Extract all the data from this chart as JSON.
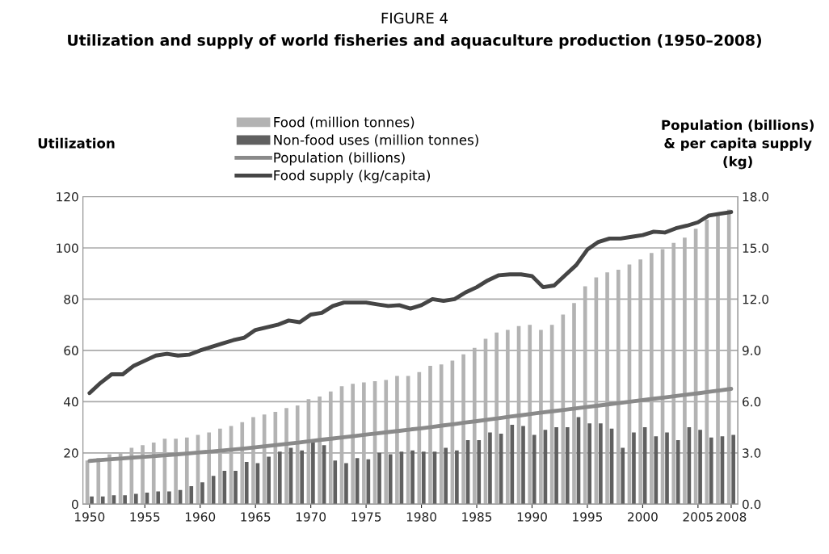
{
  "chart_data": {
    "type": "bar",
    "title": "FIGURE 4",
    "subtitle": "Utilization and supply of world fisheries and aquaculture production (1950–2008)",
    "ylabel": "Utilization",
    "y2label": "Population (billions)\n& per capita supply\n(kg)",
    "categories": [
      "1950",
      null,
      null,
      null,
      null,
      "1955",
      null,
      null,
      null,
      null,
      "1960",
      null,
      null,
      null,
      null,
      "1965",
      null,
      null,
      null,
      null,
      "1970",
      null,
      null,
      null,
      null,
      "1975",
      null,
      null,
      null,
      null,
      "1980",
      null,
      null,
      null,
      null,
      "1985",
      null,
      null,
      null,
      null,
      "1990",
      null,
      null,
      null,
      null,
      "1995",
      null,
      null,
      null,
      null,
      "2000",
      null,
      null,
      null,
      null,
      "2005",
      null,
      null,
      "2008"
    ],
    "series": [
      {
        "name": "Food (million tonnes)",
        "color": "#b3b3b3",
        "values": [
          17,
          18,
          19.5,
          20,
          22,
          23,
          24,
          25.5,
          25.5,
          26,
          27,
          28,
          29.5,
          30.5,
          32,
          34,
          35,
          36,
          37.5,
          38.5,
          41,
          42,
          44,
          46,
          47,
          47.5,
          48,
          48.5,
          50,
          50,
          51.5,
          54,
          54.5,
          56,
          58.5,
          61,
          64.5,
          67,
          68,
          69.5,
          70,
          68,
          70,
          74,
          78.5,
          85,
          88.5,
          90.5,
          91.5,
          93.5,
          95.5,
          98,
          99.5,
          102,
          104,
          107.5,
          111,
          113,
          115
        ]
      },
      {
        "name": "Non-food uses (million tonnes)",
        "color": "#606060",
        "values": [
          3,
          3,
          3.5,
          3.5,
          4,
          4.5,
          5,
          5,
          5.5,
          7,
          8.5,
          11,
          13,
          13,
          16.5,
          16,
          18.5,
          20.5,
          22,
          21,
          24.5,
          23,
          17,
          16,
          18,
          17.5,
          20,
          19.5,
          20.5,
          21,
          20.5,
          20.5,
          22,
          21,
          25,
          25,
          28,
          27.5,
          31,
          30.5,
          27,
          29,
          30,
          30,
          34,
          31.5,
          31.5,
          29.5,
          22,
          28,
          30,
          26.5,
          28,
          25,
          30,
          29,
          26,
          26.5,
          27
        ]
      },
      {
        "name": "Population (billions)",
        "type": "line",
        "axis": "y2",
        "color": "#8a8a8a",
        "values": [
          2.53,
          2.58,
          2.63,
          2.68,
          2.73,
          2.77,
          2.82,
          2.87,
          2.92,
          2.97,
          3.03,
          3.08,
          3.14,
          3.2,
          3.26,
          3.33,
          3.4,
          3.47,
          3.54,
          3.61,
          3.69,
          3.77,
          3.84,
          3.92,
          3.99,
          4.07,
          4.14,
          4.22,
          4.29,
          4.37,
          4.44,
          4.52,
          4.61,
          4.69,
          4.78,
          4.86,
          4.95,
          5.03,
          5.12,
          5.2,
          5.29,
          5.37,
          5.45,
          5.53,
          5.61,
          5.69,
          5.77,
          5.85,
          5.93,
          6.01,
          6.09,
          6.17,
          6.25,
          6.33,
          6.41,
          6.49,
          6.58,
          6.66,
          6.75
        ]
      },
      {
        "name": "Food supply (kg/capita)",
        "type": "line",
        "axis": "y2",
        "color": "#454545",
        "values": [
          6.5,
          7.1,
          7.6,
          7.6,
          8.1,
          8.4,
          8.7,
          8.8,
          8.7,
          8.75,
          9.0,
          9.2,
          9.4,
          9.6,
          9.75,
          10.2,
          10.35,
          10.5,
          10.75,
          10.65,
          11.1,
          11.2,
          11.6,
          11.8,
          11.8,
          11.8,
          11.7,
          11.6,
          11.65,
          11.45,
          11.65,
          12.0,
          11.9,
          12.0,
          12.4,
          12.7,
          13.1,
          13.4,
          13.45,
          13.45,
          13.35,
          12.7,
          12.8,
          13.4,
          14.0,
          14.9,
          15.35,
          15.55,
          15.55,
          15.65,
          15.75,
          15.95,
          15.9,
          16.15,
          16.3,
          16.5,
          16.9,
          17.0,
          17.1
        ]
      }
    ],
    "ylim": [
      0,
      120
    ],
    "yticks": [
      0,
      20,
      40,
      60,
      80,
      100,
      120
    ],
    "y2lim": [
      0,
      18
    ],
    "y2ticks": [
      {
        "value": 0,
        "label": "0.0"
      },
      {
        "value": 3,
        "label": "3.0"
      },
      {
        "value": 6,
        "label": "6.0"
      },
      {
        "value": 9,
        "label": "9.0"
      },
      {
        "value": 12,
        "label": "12.0"
      },
      {
        "value": 15,
        "label": "15.0"
      },
      {
        "value": 18,
        "label": "18.0"
      }
    ],
    "grid": "y",
    "legend": "top",
    "line_style": "solid",
    "marker": "none"
  }
}
